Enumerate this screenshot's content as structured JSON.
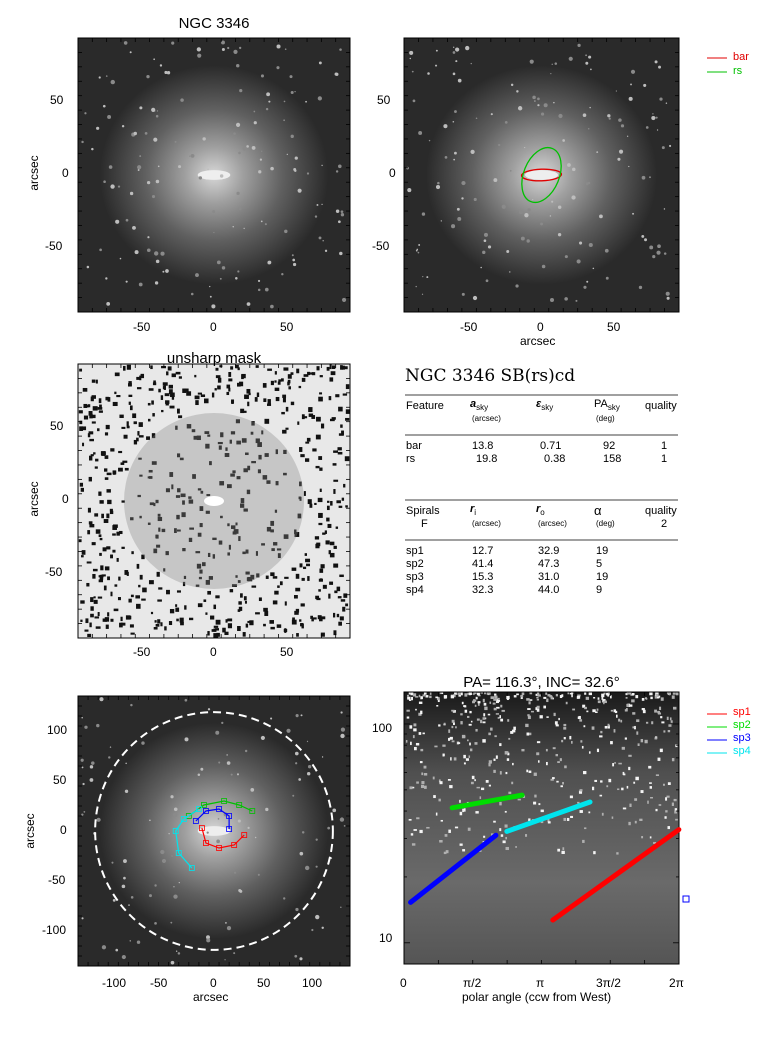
{
  "panels": {
    "image": {
      "title": "NGC 3346",
      "ylabel": "arcsec",
      "xticks": [
        "-50",
        "0",
        "50"
      ],
      "yticks": [
        "50",
        "0",
        "-50"
      ]
    },
    "ellipse": {
      "xlabel": "arcsec",
      "xticks": [
        "-50",
        "0",
        "50"
      ],
      "yticks": [
        "50",
        "0",
        "-50"
      ],
      "legend": [
        {
          "label": "bar",
          "color": "#e00000"
        },
        {
          "label": "rs",
          "color": "#00c000"
        }
      ]
    },
    "unsharp": {
      "title": "unsharp mask",
      "ylabel": "arcsec",
      "xticks": [
        "-50",
        "0",
        "50"
      ],
      "yticks": [
        "50",
        "0",
        "-50"
      ]
    },
    "spiral_overlay": {
      "xlabel": "arcsec",
      "ylabel": "arcsec",
      "xticks": [
        "-100",
        "-50",
        "0",
        "50",
        "100"
      ],
      "yticks": [
        "100",
        "50",
        "0",
        "-50",
        "-100"
      ]
    },
    "polar": {
      "title": "PA= 116.3°, INC=  32.6°",
      "xlabel": "polar angle (ccw from West)",
      "xticks": [
        "0",
        "π/2",
        "π",
        "3π/2",
        "2π"
      ],
      "yticks": [
        "100",
        "10"
      ],
      "legend": [
        {
          "label": "sp1",
          "color": "#ff0000"
        },
        {
          "label": "sp2",
          "color": "#00dd00"
        },
        {
          "label": "sp3",
          "color": "#0000ff"
        },
        {
          "label": "sp4",
          "color": "#00e5ee"
        }
      ]
    }
  },
  "table": {
    "title": "NGC 3346  SB(rs)cd",
    "features_header": {
      "c1": "Feature",
      "c2": "a",
      "c2sub": "sky",
      "c2unit": "(arcsec)",
      "c3": "ε",
      "c3sub": "sky",
      "c4": "PA",
      "c4sub": "sky",
      "c4unit": "(deg)",
      "c5": "quality"
    },
    "features": [
      {
        "name": "bar",
        "a": "13.8",
        "e": "0.71",
        "pa": "92",
        "q": "1"
      },
      {
        "name": "rs",
        "a": "19.8",
        "e": "0.38",
        "pa": "158",
        "q": "1"
      }
    ],
    "spirals_header": {
      "c1": "Spirals",
      "c1b": "F",
      "c2": "r",
      "c2sub": "i",
      "c2unit": "(arcsec)",
      "c3": "r",
      "c3sub": "o",
      "c3unit": "(arcsec)",
      "c4": "α",
      "c4unit": "(deg)",
      "c5": "quality",
      "c5b": "2"
    },
    "spirals": [
      {
        "name": "sp1",
        "ri": "12.7",
        "ro": "32.9",
        "alpha": "19"
      },
      {
        "name": "sp2",
        "ri": "41.4",
        "ro": "47.3",
        "alpha": "5"
      },
      {
        "name": "sp3",
        "ri": "15.3",
        "ro": "31.0",
        "alpha": "19"
      },
      {
        "name": "sp4",
        "ri": "32.3",
        "ro": "44.0",
        "alpha": "9"
      }
    ]
  },
  "chart_data": [
    {
      "type": "image",
      "title": "NGC 3346",
      "ylabel": "arcsec",
      "xlim": [
        -95,
        95
      ],
      "ylim": [
        -95,
        95
      ]
    },
    {
      "type": "image-overlay",
      "xlabel": "arcsec",
      "xlim": [
        -95,
        95
      ],
      "ylim": [
        -95,
        95
      ],
      "ellipses": [
        {
          "name": "bar",
          "a": 13.8,
          "e": 0.71,
          "pa": 92,
          "color": "#e00000"
        },
        {
          "name": "rs",
          "a": 19.8,
          "e": 0.38,
          "pa": 158,
          "color": "#00c000"
        }
      ]
    },
    {
      "type": "image",
      "title": "unsharp mask",
      "ylabel": "arcsec",
      "xlim": [
        -95,
        95
      ],
      "ylim": [
        -95,
        95
      ]
    },
    {
      "type": "image-overlay",
      "xlabel": "arcsec",
      "ylabel": "arcsec",
      "xlim": [
        -135,
        135
      ],
      "ylim": [
        -135,
        135
      ],
      "circle_radius": 118,
      "spirals": [
        {
          "name": "sp1",
          "color": "#ff0000",
          "points": [
            [
              -12,
              3
            ],
            [
              -8,
              -12
            ],
            [
              5,
              -17
            ],
            [
              20,
              -14
            ],
            [
              30,
              -4
            ]
          ]
        },
        {
          "name": "sp2",
          "color": "#00c000",
          "points": [
            [
              -25,
              15
            ],
            [
              -10,
              26
            ],
            [
              10,
              30
            ],
            [
              25,
              26
            ],
            [
              38,
              20
            ]
          ]
        },
        {
          "name": "sp3",
          "color": "#0000ff",
          "points": [
            [
              -18,
              10
            ],
            [
              -8,
              20
            ],
            [
              5,
              22
            ],
            [
              15,
              15
            ],
            [
              15,
              2
            ]
          ]
        },
        {
          "name": "sp4",
          "color": "#00e5ee",
          "points": [
            [
              -15,
              22
            ],
            [
              -30,
              12
            ],
            [
              -38,
              0
            ],
            [
              -35,
              -22
            ],
            [
              -22,
              -37
            ]
          ]
        }
      ]
    },
    {
      "type": "line",
      "title": "PA= 116.3°, INC=  32.6°",
      "xlabel": "polar angle (ccw from West)",
      "xlim": [
        0,
        6.2832
      ],
      "ylim": [
        8,
        140
      ],
      "yscale": "log",
      "series": [
        {
          "name": "sp1",
          "color": "#ff0000",
          "x": [
            3.4,
            6.28
          ],
          "y": [
            12.7,
            32.9
          ]
        },
        {
          "name": "sp2",
          "color": "#00dd00",
          "x": [
            1.1,
            2.7
          ],
          "y": [
            41.4,
            47.3
          ]
        },
        {
          "name": "sp3",
          "color": "#0000ff",
          "x": [
            0.15,
            2.1
          ],
          "y": [
            15.3,
            31.0
          ]
        },
        {
          "name": "sp4",
          "color": "#00e5ee",
          "x": [
            2.35,
            4.25
          ],
          "y": [
            32.3,
            44.0
          ]
        }
      ]
    }
  ]
}
